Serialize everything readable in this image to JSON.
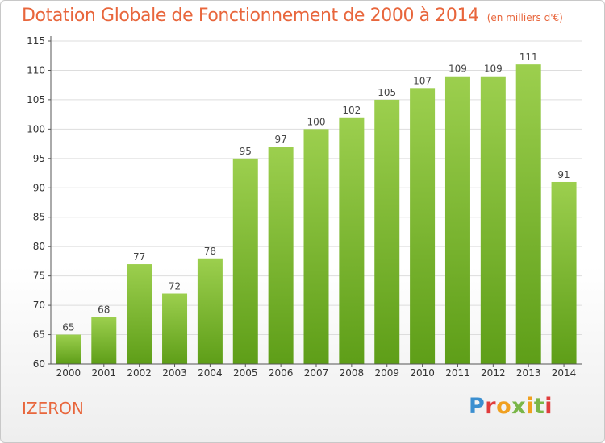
{
  "header": {
    "title": "Dotation Globale de Fonctionnement de 2000 à 2014",
    "unit": "(en milliers d'€)"
  },
  "footer": {
    "commune": "IZERON",
    "logo_text": "Proxiti"
  },
  "colors": {
    "title": "#e8663c",
    "bar_top": "#9ccf4e",
    "bar_bottom": "#5e9e18",
    "grid": "#dddddd",
    "axis": "#555555"
  },
  "chart_data": {
    "type": "bar",
    "title": "Dotation Globale de Fonctionnement de 2000 à 2014",
    "subtitle": "(en milliers d'€)",
    "xlabel": "",
    "ylabel": "",
    "categories": [
      "2000",
      "2001",
      "2002",
      "2003",
      "2004",
      "2005",
      "2006",
      "2007",
      "2008",
      "2009",
      "2010",
      "2011",
      "2012",
      "2013",
      "2014"
    ],
    "values": [
      65,
      68,
      77,
      72,
      78,
      95,
      97,
      100,
      102,
      105,
      107,
      109,
      109,
      111,
      91
    ],
    "ylim": [
      60,
      115
    ],
    "yticks": [
      60,
      65,
      70,
      75,
      80,
      85,
      90,
      95,
      100,
      105,
      110,
      115
    ],
    "grid": true,
    "data_labels": true
  }
}
